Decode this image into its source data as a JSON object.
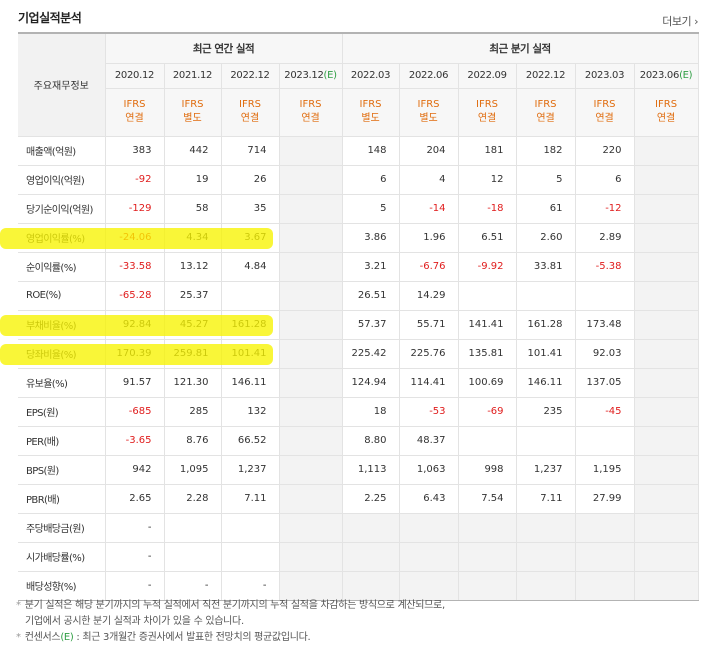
{
  "header": {
    "title": "기업실적분석",
    "more_label": "더보기",
    "more_icon": "chevron-right-icon"
  },
  "table": {
    "row_header_label": "주요재무정보",
    "group_annual": "최근 연간 실적",
    "group_quarter": "최근 분기 실적",
    "columns": [
      {
        "date": "2020.12",
        "ifrs": "IFRS",
        "basis": "연결",
        "estimate": false
      },
      {
        "date": "2021.12",
        "ifrs": "IFRS",
        "basis": "별도",
        "estimate": false
      },
      {
        "date": "2022.12",
        "ifrs": "IFRS",
        "basis": "연결",
        "estimate": false
      },
      {
        "date": "2023.12",
        "date_mark": "(E)",
        "ifrs": "IFRS",
        "basis": "연결",
        "estimate": true
      },
      {
        "date": "2022.03",
        "ifrs": "IFRS",
        "basis": "별도",
        "estimate": false
      },
      {
        "date": "2022.06",
        "ifrs": "IFRS",
        "basis": "별도",
        "estimate": false
      },
      {
        "date": "2022.09",
        "ifrs": "IFRS",
        "basis": "연결",
        "estimate": false
      },
      {
        "date": "2022.12",
        "ifrs": "IFRS",
        "basis": "연결",
        "estimate": false
      },
      {
        "date": "2023.03",
        "ifrs": "IFRS",
        "basis": "연결",
        "estimate": false
      },
      {
        "date": "2023.06",
        "date_mark": "(E)",
        "ifrs": "IFRS",
        "basis": "연결",
        "estimate": true
      }
    ],
    "rows": [
      {
        "label": "매출액(억원)",
        "values": [
          "383",
          "442",
          "714",
          "",
          "148",
          "204",
          "181",
          "182",
          "220",
          ""
        ]
      },
      {
        "label": "영업이익(억원)",
        "values": [
          "-92",
          "19",
          "26",
          "",
          "6",
          "4",
          "12",
          "5",
          "6",
          ""
        ]
      },
      {
        "label": "당기순이익(억원)",
        "values": [
          "-129",
          "58",
          "35",
          "",
          "5",
          "-14",
          "-18",
          "61",
          "-12",
          ""
        ]
      },
      {
        "label": "영업이익률(%)",
        "values": [
          "-24.06",
          "4.34",
          "3.67",
          "",
          "3.86",
          "1.96",
          "6.51",
          "2.60",
          "2.89",
          ""
        ]
      },
      {
        "label": "순이익률(%)",
        "values": [
          "-33.58",
          "13.12",
          "4.84",
          "",
          "3.21",
          "-6.76",
          "-9.92",
          "33.81",
          "-5.38",
          ""
        ]
      },
      {
        "label": "ROE(%)",
        "values": [
          "-65.28",
          "25.37",
          "",
          "",
          "26.51",
          "14.29",
          "",
          "",
          "",
          ""
        ]
      },
      {
        "label": "부채비율(%)",
        "values": [
          "92.84",
          "45.27",
          "161.28",
          "",
          "57.37",
          "55.71",
          "141.41",
          "161.28",
          "173.48",
          ""
        ]
      },
      {
        "label": "당좌비율(%)",
        "values": [
          "170.39",
          "259.81",
          "101.41",
          "",
          "225.42",
          "225.76",
          "135.81",
          "101.41",
          "92.03",
          ""
        ]
      },
      {
        "label": "유보율(%)",
        "values": [
          "91.57",
          "121.30",
          "146.11",
          "",
          "124.94",
          "114.41",
          "100.69",
          "146.11",
          "137.05",
          ""
        ]
      },
      {
        "label": "EPS(원)",
        "values": [
          "-685",
          "285",
          "132",
          "",
          "18",
          "-53",
          "-69",
          "235",
          "-45",
          ""
        ]
      },
      {
        "label": "PER(배)",
        "values": [
          "-3.65",
          "8.76",
          "66.52",
          "",
          "8.80",
          "48.37",
          "",
          "",
          "",
          ""
        ]
      },
      {
        "label": "BPS(원)",
        "values": [
          "942",
          "1,095",
          "1,237",
          "",
          "1,113",
          "1,063",
          "998",
          "1,237",
          "1,195",
          ""
        ]
      },
      {
        "label": "PBR(배)",
        "values": [
          "2.65",
          "2.28",
          "7.11",
          "",
          "2.25",
          "6.43",
          "7.54",
          "7.11",
          "27.99",
          ""
        ]
      },
      {
        "label": "주당배당금(원)",
        "values": [
          "-",
          "",
          "",
          "",
          "",
          "",
          "",
          "",
          "",
          ""
        ]
      },
      {
        "label": "시가배당률(%)",
        "values": [
          "-",
          "",
          "",
          "",
          "",
          "",
          "",
          "",
          "",
          ""
        ]
      },
      {
        "label": "배당성향(%)",
        "values": [
          "-",
          "-",
          "-",
          "",
          "",
          "",
          "",
          "",
          "",
          ""
        ]
      }
    ],
    "highlighted_rows": [
      "영업이익률(%)",
      "부채비율(%)",
      "당좌비율(%)"
    ]
  },
  "notes": [
    {
      "bullet": "*",
      "text": "분기 실적은 해당 분기까지의 누적 실적에서 직전 분기까지의 누적 실적을 차감하는 방식으로 계산되므로,"
    },
    {
      "bullet": "",
      "text": "기업에서 공시한 분기 실적과 차이가 있을 수 있습니다."
    },
    {
      "bullet": "*",
      "text_pre": "컨센서스",
      "mark": "(E)",
      "text_post": " : 최근 3개월간 증권사에서 발표한 전망치의 평균값입니다."
    }
  ],
  "colors": {
    "negative": "#e01d1d",
    "ifrs": "#e06c0e",
    "estimate": "#2f9e44",
    "highlight": "#f7f400"
  }
}
